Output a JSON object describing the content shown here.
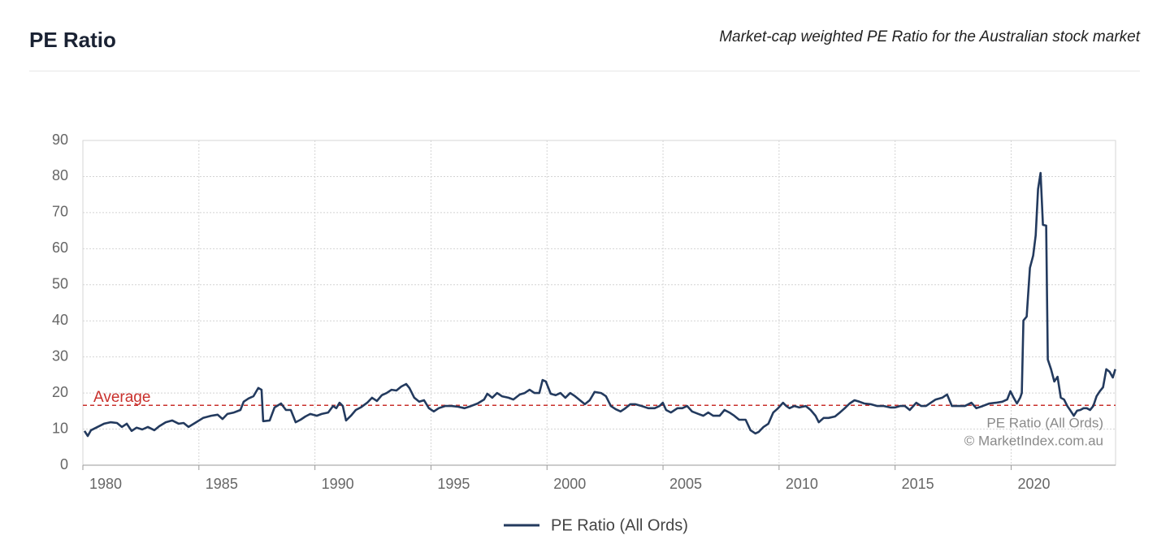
{
  "chart_data": {
    "type": "line",
    "title": "PE Ratio",
    "subtitle": "Market-cap weighted PE Ratio for the Australian stock market",
    "x": [
      1980.07,
      1980.21,
      1980.35,
      1980.63,
      1980.91,
      1981.19,
      1981.47,
      1981.68,
      1981.89,
      1982.1,
      1982.31,
      1982.56,
      1982.8,
      1983.08,
      1983.29,
      1983.57,
      1983.85,
      1984.13,
      1984.34,
      1984.55,
      1984.83,
      1985.18,
      1985.53,
      1985.81,
      1986.02,
      1986.23,
      1986.51,
      1986.79,
      1986.93,
      1987.14,
      1987.35,
      1987.56,
      1987.7,
      1987.77,
      1988.05,
      1988.26,
      1988.54,
      1988.75,
      1988.96,
      1989.17,
      1989.38,
      1989.59,
      1989.8,
      1990.08,
      1990.29,
      1990.57,
      1990.78,
      1990.92,
      1991.06,
      1991.2,
      1991.34,
      1991.55,
      1991.76,
      1991.97,
      1992.25,
      1992.46,
      1992.67,
      1992.88,
      1993.09,
      1993.3,
      1993.51,
      1993.72,
      1993.93,
      1994.07,
      1994.28,
      1994.49,
      1994.7,
      1994.91,
      1995.12,
      1995.33,
      1995.61,
      1995.89,
      1996.17,
      1996.45,
      1996.73,
      1997.01,
      1997.29,
      1997.43,
      1997.64,
      1997.85,
      1998.06,
      1998.34,
      1998.55,
      1998.83,
      1999.04,
      1999.25,
      1999.46,
      1999.67,
      1999.81,
      1999.95,
      2000.16,
      2000.37,
      2000.58,
      2000.79,
      2001.0,
      2001.21,
      2001.42,
      2001.63,
      2001.84,
      2002.05,
      2002.33,
      2002.54,
      2002.75,
      2002.96,
      2003.17,
      2003.38,
      2003.59,
      2003.8,
      2004.08,
      2004.36,
      2004.64,
      2004.85,
      2004.99,
      2005.13,
      2005.34,
      2005.62,
      2005.83,
      2006.04,
      2006.25,
      2006.53,
      2006.74,
      2006.95,
      2007.16,
      2007.44,
      2007.65,
      2007.86,
      2008.07,
      2008.28,
      2008.56,
      2008.77,
      2008.98,
      2009.12,
      2009.33,
      2009.54,
      2009.75,
      2009.96,
      2010.17,
      2010.31,
      2010.45,
      2010.66,
      2010.87,
      2011.15,
      2011.36,
      2011.57,
      2011.71,
      2011.92,
      2012.13,
      2012.41,
      2012.62,
      2012.83,
      2013.04,
      2013.25,
      2013.46,
      2013.67,
      2013.95,
      2014.23,
      2014.51,
      2014.79,
      2015.0,
      2015.21,
      2015.42,
      2015.63,
      2015.91,
      2016.12,
      2016.33,
      2016.54,
      2016.75,
      2017.03,
      2017.24,
      2017.45,
      2017.73,
      2018.01,
      2018.29,
      2018.5,
      2018.78,
      2019.06,
      2019.34,
      2019.62,
      2019.83,
      2019.97,
      2020.11,
      2020.25,
      2020.39,
      2020.46,
      2020.53,
      2020.67,
      2020.81,
      2020.95,
      2021.06,
      2021.16,
      2021.27,
      2021.37,
      2021.51,
      2021.58,
      2021.72,
      2021.86,
      2022.0,
      2022.14,
      2022.28,
      2022.42,
      2022.56,
      2022.7,
      2022.84,
      2022.98,
      2023.12,
      2023.26,
      2023.4,
      2023.54,
      2023.68,
      2023.82,
      2023.96,
      2024.1,
      2024.24,
      2024.38,
      2024.49
    ],
    "series": [
      {
        "name": "PE Ratio (All Ords)",
        "color": "#233a5e",
        "values": [
          9.5,
          8.1,
          9.7,
          10.6,
          11.5,
          11.9,
          11.7,
          10.6,
          11.5,
          9.5,
          10.4,
          9.9,
          10.6,
          9.7,
          10.8,
          11.9,
          12.4,
          11.5,
          11.7,
          10.6,
          11.7,
          13.1,
          13.7,
          14.0,
          12.8,
          14.2,
          14.6,
          15.3,
          17.6,
          18.5,
          19.1,
          21.4,
          20.9,
          12.2,
          12.4,
          16.0,
          17.1,
          15.3,
          15.3,
          11.9,
          12.6,
          13.5,
          14.2,
          13.7,
          14.2,
          14.6,
          16.4,
          15.8,
          17.3,
          16.4,
          12.4,
          13.7,
          15.3,
          16.0,
          17.3,
          18.7,
          17.8,
          19.4,
          20.0,
          20.9,
          20.7,
          21.8,
          22.5,
          21.4,
          18.7,
          17.6,
          18.0,
          15.8,
          14.9,
          15.8,
          16.4,
          16.4,
          16.2,
          15.8,
          16.4,
          17.1,
          18.2,
          19.8,
          18.7,
          20.0,
          19.1,
          18.7,
          18.2,
          19.6,
          20.0,
          20.9,
          20.0,
          20.0,
          23.6,
          23.2,
          19.8,
          19.4,
          20.0,
          18.7,
          20.0,
          19.1,
          18.0,
          16.9,
          18.0,
          20.3,
          20.0,
          19.1,
          16.4,
          15.5,
          14.9,
          15.8,
          16.9,
          16.9,
          16.4,
          15.8,
          15.8,
          16.4,
          17.3,
          15.3,
          14.6,
          15.8,
          15.8,
          16.4,
          14.9,
          14.2,
          13.7,
          14.6,
          13.7,
          13.7,
          15.3,
          14.6,
          13.7,
          12.6,
          12.6,
          9.7,
          8.8,
          9.2,
          10.6,
          11.5,
          14.6,
          15.8,
          17.3,
          16.4,
          15.8,
          16.4,
          16.0,
          16.4,
          15.3,
          13.7,
          11.9,
          13.1,
          13.1,
          13.5,
          14.6,
          15.8,
          17.1,
          18.0,
          17.6,
          17.1,
          16.9,
          16.4,
          16.4,
          16.0,
          16.0,
          16.4,
          16.4,
          15.3,
          17.3,
          16.4,
          16.4,
          17.3,
          18.2,
          18.7,
          19.6,
          16.4,
          16.4,
          16.4,
          17.3,
          15.8,
          16.4,
          17.1,
          17.3,
          17.6,
          18.2,
          20.5,
          18.7,
          17.1,
          18.7,
          20.0,
          40.1,
          41.2,
          54.7,
          58.1,
          63.7,
          76.5,
          81.0,
          66.6,
          66.4,
          29.3,
          26.6,
          23.2,
          24.5,
          18.7,
          18.2,
          16.4,
          15.1,
          13.7,
          15.1,
          15.3,
          15.8,
          15.8,
          15.3,
          16.4,
          19.1,
          20.5,
          21.6,
          26.6,
          25.9,
          24.3,
          26.6
        ]
      }
    ],
    "xlim": [
      1980,
      2024.5
    ],
    "ylim": [
      0,
      90
    ],
    "xticks": [
      1980,
      1985,
      1990,
      1995,
      2000,
      2005,
      2010,
      2015,
      2020
    ],
    "yticks": [
      0,
      10,
      20,
      30,
      40,
      50,
      60,
      70,
      80,
      90
    ],
    "grid": true,
    "annotation": {
      "label": "Average",
      "value": 16.6,
      "color": "#c9302c"
    },
    "credit": "© MarketIndex.com.au"
  }
}
